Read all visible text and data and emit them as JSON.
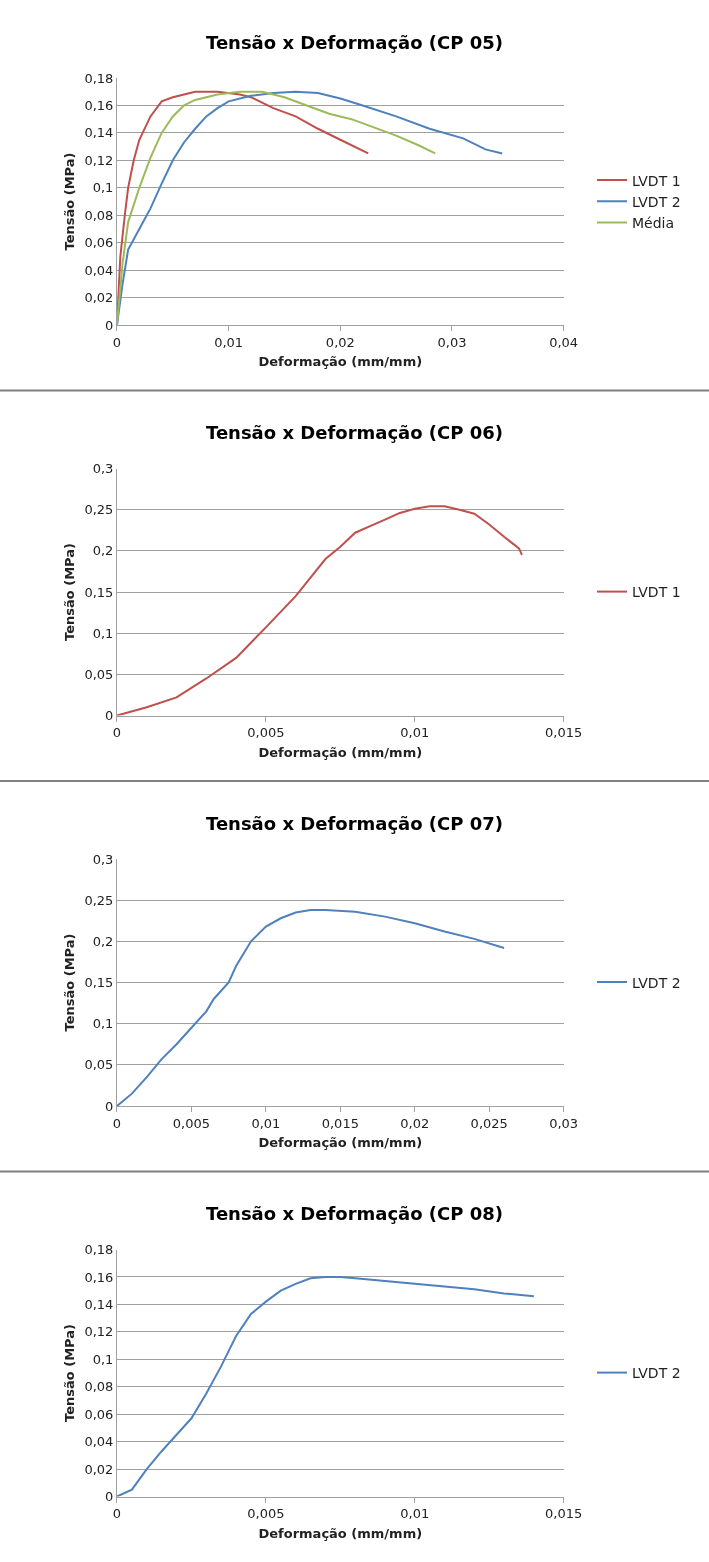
{
  "chart_data": [
    {
      "type": "line",
      "title": "Tensão x Deformação (CP 05)",
      "xlabel": "Deformação (mm/mm)",
      "ylabel": "Tensão (MPa)",
      "grid": "y",
      "legend": "right",
      "line_style": "solid",
      "xlim": [
        0,
        0.04
      ],
      "xticks": [
        0,
        {
          "value": 0.01,
          "label": "0,01"
        },
        {
          "value": 0.02,
          "label": "0,02"
        },
        {
          "value": 0.03,
          "label": "0,03"
        },
        {
          "value": 0.04,
          "label": "0,04"
        }
      ],
      "ylim": [
        0,
        0.18
      ],
      "yticks": [
        0,
        {
          "value": 0.02,
          "label": "0,02"
        },
        {
          "value": 0.04,
          "label": "0,04"
        },
        {
          "value": 0.06,
          "label": "0,06"
        },
        {
          "value": 0.08,
          "label": "0,08"
        },
        {
          "value": 0.1,
          "label": "0,1"
        },
        {
          "value": 0.12,
          "label": "0,12"
        },
        {
          "value": 0.14,
          "label": "0,14"
        },
        {
          "value": 0.16,
          "label": "0,16"
        },
        {
          "value": 0.18,
          "label": "0,18"
        }
      ],
      "series": [
        {
          "name": "LVDT 1",
          "color": "#c0504d",
          "x": [
            0,
            0.0003,
            0.0007,
            0.001,
            0.0015,
            0.002,
            0.003,
            0.004,
            0.005,
            0.006,
            0.007,
            0.009,
            0.011,
            0.012,
            0.014,
            0.016,
            0.018,
            0.02,
            0.0225
          ],
          "values": [
            0,
            0.05,
            0.08,
            0.1,
            0.12,
            0.135,
            0.152,
            0.163,
            0.166,
            0.168,
            0.17,
            0.17,
            0.168,
            0.166,
            0.158,
            0.152,
            0.143,
            0.135,
            0.125
          ]
        },
        {
          "name": "LVDT 2",
          "color": "#4f81bd",
          "x": [
            0,
            0.0005,
            0.001,
            0.002,
            0.003,
            0.004,
            0.005,
            0.006,
            0.007,
            0.008,
            0.009,
            0.01,
            0.012,
            0.014,
            0.016,
            0.018,
            0.02,
            0.022,
            0.025,
            0.028,
            0.031,
            0.033,
            0.0345
          ],
          "values": [
            0,
            0.03,
            0.055,
            0.07,
            0.085,
            0.103,
            0.12,
            0.133,
            0.143,
            0.152,
            0.158,
            0.163,
            0.167,
            0.169,
            0.17,
            0.169,
            0.165,
            0.16,
            0.152,
            0.143,
            0.136,
            0.128,
            0.125
          ]
        },
        {
          "name": "Média",
          "color": "#9bbb59",
          "x": [
            0,
            0.0005,
            0.001,
            0.002,
            0.003,
            0.004,
            0.005,
            0.006,
            0.007,
            0.009,
            0.011,
            0.013,
            0.015,
            0.017,
            0.019,
            0.021,
            0.023,
            0.025,
            0.027,
            0.0285
          ],
          "values": [
            0,
            0.045,
            0.075,
            0.1,
            0.122,
            0.14,
            0.152,
            0.16,
            0.164,
            0.168,
            0.17,
            0.17,
            0.166,
            0.16,
            0.154,
            0.15,
            0.144,
            0.138,
            0.131,
            0.125
          ]
        }
      ]
    },
    {
      "type": "line",
      "title": "Tensão x Deformação (CP 06)",
      "xlabel": "Deformação (mm/mm)",
      "ylabel": "Tensão (MPa)",
      "grid": "y",
      "legend": "right",
      "line_style": "solid",
      "xlim": [
        0,
        0.015
      ],
      "xticks": [
        0,
        {
          "value": 0.005,
          "label": "0,005"
        },
        {
          "value": 0.01,
          "label": "0,01"
        },
        {
          "value": 0.015,
          "label": "0,015"
        }
      ],
      "ylim": [
        0,
        0.3
      ],
      "yticks": [
        0,
        {
          "value": 0.05,
          "label": "0,05"
        },
        {
          "value": 0.1,
          "label": "0,1"
        },
        {
          "value": 0.15,
          "label": "0,15"
        },
        {
          "value": 0.2,
          "label": "0,2"
        },
        {
          "value": 0.25,
          "label": "0,25"
        },
        {
          "value": 0.3,
          "label": "0,3"
        }
      ],
      "series": [
        {
          "name": "LVDT 1",
          "color": "#c0504d",
          "x": [
            0,
            0.001,
            0.002,
            0.003,
            0.004,
            0.005,
            0.006,
            0.007,
            0.0075,
            0.008,
            0.0085,
            0.009,
            0.0095,
            0.01,
            0.0105,
            0.011,
            0.0115,
            0.012,
            0.0125,
            0.013,
            0.0135,
            0.0136
          ],
          "values": [
            0,
            0.01,
            0.022,
            0.045,
            0.07,
            0.107,
            0.145,
            0.19,
            0.205,
            0.222,
            0.23,
            0.238,
            0.246,
            0.251,
            0.254,
            0.254,
            0.25,
            0.245,
            0.232,
            0.217,
            0.203,
            0.195
          ]
        }
      ]
    },
    {
      "type": "line",
      "title": "Tensão x Deformação (CP 07)",
      "xlabel": "Deformação (mm/mm)",
      "ylabel": "Tensão (MPa)",
      "grid": "y",
      "legend": "right",
      "line_style": "solid",
      "xlim": [
        0,
        0.03
      ],
      "xticks": [
        0,
        {
          "value": 0.005,
          "label": "0,005"
        },
        {
          "value": 0.01,
          "label": "0,01"
        },
        {
          "value": 0.015,
          "label": "0,015"
        },
        {
          "value": 0.02,
          "label": "0,02"
        },
        {
          "value": 0.025,
          "label": "0,025"
        },
        {
          "value": 0.03,
          "label": "0,03"
        }
      ],
      "ylim": [
        0,
        0.3
      ],
      "yticks": [
        0,
        {
          "value": 0.05,
          "label": "0,05"
        },
        {
          "value": 0.1,
          "label": "0,1"
        },
        {
          "value": 0.15,
          "label": "0,15"
        },
        {
          "value": 0.2,
          "label": "0,2"
        },
        {
          "value": 0.25,
          "label": "0,25"
        },
        {
          "value": 0.3,
          "label": "0,3"
        }
      ],
      "series": [
        {
          "name": "LVDT 2",
          "color": "#4f81bd",
          "x": [
            0,
            0.001,
            0.002,
            0.003,
            0.004,
            0.005,
            0.006,
            0.0065,
            0.0075,
            0.008,
            0.009,
            0.01,
            0.011,
            0.012,
            0.013,
            0.014,
            0.016,
            0.018,
            0.02,
            0.022,
            0.024,
            0.026
          ],
          "values": [
            0,
            0.015,
            0.035,
            0.057,
            0.075,
            0.095,
            0.115,
            0.13,
            0.15,
            0.17,
            0.2,
            0.218,
            0.228,
            0.235,
            0.238,
            0.238,
            0.236,
            0.23,
            0.222,
            0.212,
            0.203,
            0.192
          ]
        }
      ]
    },
    {
      "type": "line",
      "title": "Tensão x Deformação (CP 08)",
      "xlabel": "Deformação (mm/mm)",
      "ylabel": "Tensão (MPa)",
      "grid": "y",
      "legend": "right",
      "line_style": "solid",
      "xlim": [
        0,
        0.015
      ],
      "xticks": [
        0,
        {
          "value": 0.005,
          "label": "0,005"
        },
        {
          "value": 0.01,
          "label": "0,01"
        },
        {
          "value": 0.015,
          "label": "0,015"
        }
      ],
      "ylim": [
        0,
        0.18
      ],
      "yticks": [
        0,
        {
          "value": 0.02,
          "label": "0,02"
        },
        {
          "value": 0.04,
          "label": "0,04"
        },
        {
          "value": 0.06,
          "label": "0,06"
        },
        {
          "value": 0.08,
          "label": "0,08"
        },
        {
          "value": 0.1,
          "label": "0,1"
        },
        {
          "value": 0.12,
          "label": "0,12"
        },
        {
          "value": 0.14,
          "label": "0,14"
        },
        {
          "value": 0.16,
          "label": "0,16"
        },
        {
          "value": 0.18,
          "label": "0,18"
        }
      ],
      "series": [
        {
          "name": "LVDT 2",
          "color": "#4f81bd",
          "x": [
            0,
            0.0005,
            0.001,
            0.0015,
            0.002,
            0.0025,
            0.003,
            0.0035,
            0.004,
            0.0045,
            0.005,
            0.0055,
            0.006,
            0.0065,
            0.007,
            0.0075,
            0.008,
            0.009,
            0.01,
            0.011,
            0.012,
            0.013,
            0.014
          ],
          "values": [
            0,
            0.005,
            0.02,
            0.033,
            0.045,
            0.057,
            0.075,
            0.095,
            0.117,
            0.133,
            0.142,
            0.15,
            0.155,
            0.159,
            0.16,
            0.16,
            0.159,
            0.157,
            0.155,
            0.153,
            0.151,
            0.148,
            0.146
          ]
        }
      ]
    }
  ]
}
